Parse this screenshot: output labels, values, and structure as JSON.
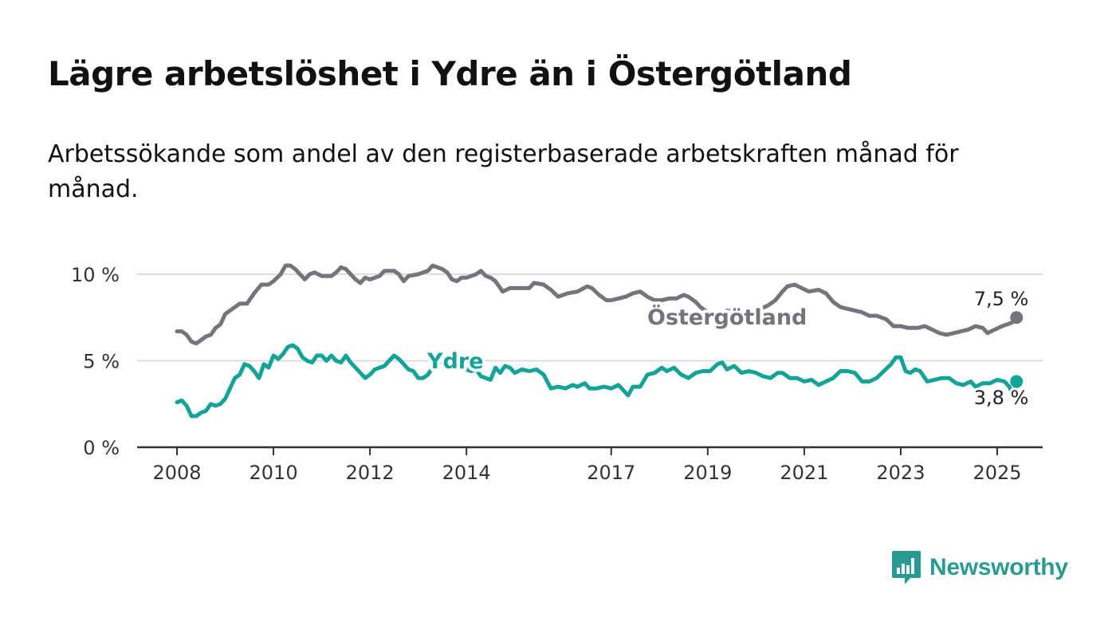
{
  "title": "Lägre arbetslöshet i Ydre än i Östergötland",
  "subtitle": "Arbetssökande som andel av den registerbaserade arbetskraften månad för månad.",
  "brand": {
    "name": "Newsworthy"
  },
  "colors": {
    "ostergotland": "#76747a",
    "ydre": "#13a397",
    "grid": "#dddddd",
    "axis": "#333333",
    "brand": "#2b9a93"
  },
  "chart_data": {
    "type": "line",
    "title": "",
    "xlabel": "",
    "ylabel": "",
    "xlim": [
      2008.0,
      2025.4
    ],
    "ylim": [
      0,
      10
    ],
    "grid": "horizontal",
    "legend": "inline labels on lines",
    "x_ticks": [
      {
        "value": 2008,
        "label": "2008"
      },
      {
        "value": 2010,
        "label": "2010"
      },
      {
        "value": 2012,
        "label": "2012"
      },
      {
        "value": 2014,
        "label": "2014"
      },
      {
        "value": 2017,
        "label": "2017"
      },
      {
        "value": 2019,
        "label": "2019"
      },
      {
        "value": 2021,
        "label": "2021"
      },
      {
        "value": 2023,
        "label": "2023"
      },
      {
        "value": 2025,
        "label": "2025"
      }
    ],
    "y_ticks": [
      {
        "value": 0,
        "label": "0 %"
      },
      {
        "value": 5,
        "label": "5 %"
      },
      {
        "value": 10,
        "label": "10 %"
      }
    ],
    "series": [
      {
        "name": "Östergötland",
        "color": "#76747a",
        "end_label": "7,5 %",
        "points": [
          [
            2008.0,
            6.7
          ],
          [
            2008.1,
            6.7
          ],
          [
            2008.2,
            6.5
          ],
          [
            2008.3,
            6.1
          ],
          [
            2008.4,
            6.0
          ],
          [
            2008.5,
            6.2
          ],
          [
            2008.6,
            6.4
          ],
          [
            2008.7,
            6.5
          ],
          [
            2008.8,
            6.9
          ],
          [
            2008.9,
            7.1
          ],
          [
            2009.0,
            7.7
          ],
          [
            2009.15,
            8.0
          ],
          [
            2009.3,
            8.3
          ],
          [
            2009.45,
            8.3
          ],
          [
            2009.6,
            8.9
          ],
          [
            2009.75,
            9.4
          ],
          [
            2009.9,
            9.4
          ],
          [
            2010.0,
            9.6
          ],
          [
            2010.15,
            10.0
          ],
          [
            2010.25,
            10.5
          ],
          [
            2010.35,
            10.5
          ],
          [
            2010.45,
            10.3
          ],
          [
            2010.55,
            10.0
          ],
          [
            2010.65,
            9.7
          ],
          [
            2010.75,
            10.0
          ],
          [
            2010.85,
            10.1
          ],
          [
            2011.0,
            9.9
          ],
          [
            2011.2,
            9.9
          ],
          [
            2011.3,
            10.1
          ],
          [
            2011.4,
            10.4
          ],
          [
            2011.5,
            10.3
          ],
          [
            2011.6,
            10.0
          ],
          [
            2011.7,
            9.7
          ],
          [
            2011.8,
            9.5
          ],
          [
            2011.9,
            9.8
          ],
          [
            2012.0,
            9.7
          ],
          [
            2012.1,
            9.8
          ],
          [
            2012.2,
            9.9
          ],
          [
            2012.3,
            10.2
          ],
          [
            2012.5,
            10.2
          ],
          [
            2012.6,
            10.0
          ],
          [
            2012.7,
            9.6
          ],
          [
            2012.8,
            9.9
          ],
          [
            2013.0,
            10.0
          ],
          [
            2013.1,
            10.1
          ],
          [
            2013.2,
            10.2
          ],
          [
            2013.3,
            10.5
          ],
          [
            2013.4,
            10.4
          ],
          [
            2013.5,
            10.3
          ],
          [
            2013.6,
            10.1
          ],
          [
            2013.7,
            9.7
          ],
          [
            2013.8,
            9.6
          ],
          [
            2013.9,
            9.8
          ],
          [
            2014.0,
            9.8
          ],
          [
            2014.1,
            9.9
          ],
          [
            2014.2,
            10.0
          ],
          [
            2014.3,
            10.2
          ],
          [
            2014.4,
            9.9
          ],
          [
            2014.5,
            9.8
          ],
          [
            2014.6,
            9.6
          ],
          [
            2014.75,
            9.0
          ],
          [
            2014.9,
            9.2
          ],
          [
            2015.1,
            9.2
          ],
          [
            2015.3,
            9.2
          ],
          [
            2015.4,
            9.5
          ],
          [
            2015.6,
            9.4
          ],
          [
            2015.75,
            9.1
          ],
          [
            2015.9,
            8.7
          ],
          [
            2016.1,
            8.9
          ],
          [
            2016.3,
            9.0
          ],
          [
            2016.5,
            9.3
          ],
          [
            2016.6,
            9.2
          ],
          [
            2016.75,
            8.8
          ],
          [
            2016.9,
            8.5
          ],
          [
            2017.0,
            8.5
          ],
          [
            2017.15,
            8.6
          ],
          [
            2017.3,
            8.7
          ],
          [
            2017.45,
            8.9
          ],
          [
            2017.6,
            9.0
          ],
          [
            2017.75,
            8.7
          ],
          [
            2017.9,
            8.5
          ],
          [
            2018.05,
            8.5
          ],
          [
            2018.2,
            8.6
          ],
          [
            2018.35,
            8.6
          ],
          [
            2018.5,
            8.8
          ],
          [
            2018.6,
            8.7
          ],
          [
            2018.75,
            8.4
          ],
          [
            2018.85,
            8.1
          ],
          [
            2018.95,
            7.9
          ],
          [
            2019.1,
            7.7
          ],
          [
            2019.25,
            7.7
          ],
          [
            2019.4,
            7.9
          ],
          [
            2019.55,
            7.8
          ],
          [
            2019.7,
            7.6
          ],
          [
            2019.85,
            7.6
          ],
          [
            2019.95,
            7.7
          ],
          [
            2020.1,
            8.0
          ],
          [
            2020.25,
            8.2
          ],
          [
            2020.4,
            8.5
          ],
          [
            2020.55,
            9.0
          ],
          [
            2020.65,
            9.3
          ],
          [
            2020.8,
            9.4
          ],
          [
            2020.95,
            9.2
          ],
          [
            2021.1,
            9.0
          ],
          [
            2021.3,
            9.1
          ],
          [
            2021.45,
            8.9
          ],
          [
            2021.6,
            8.4
          ],
          [
            2021.75,
            8.1
          ],
          [
            2021.9,
            8.0
          ],
          [
            2022.05,
            7.9
          ],
          [
            2022.2,
            7.8
          ],
          [
            2022.35,
            7.6
          ],
          [
            2022.5,
            7.6
          ],
          [
            2022.7,
            7.4
          ],
          [
            2022.85,
            7.0
          ],
          [
            2023.0,
            7.0
          ],
          [
            2023.15,
            6.9
          ],
          [
            2023.35,
            6.9
          ],
          [
            2023.5,
            7.0
          ],
          [
            2023.65,
            6.8
          ],
          [
            2023.8,
            6.6
          ],
          [
            2023.95,
            6.5
          ],
          [
            2024.1,
            6.6
          ],
          [
            2024.25,
            6.7
          ],
          [
            2024.4,
            6.8
          ],
          [
            2024.55,
            7.0
          ],
          [
            2024.7,
            6.9
          ],
          [
            2024.8,
            6.6
          ],
          [
            2024.95,
            6.8
          ],
          [
            2025.1,
            7.0
          ],
          [
            2025.3,
            7.2
          ],
          [
            2025.4,
            7.5
          ]
        ]
      },
      {
        "name": "Ydre",
        "color": "#13a397",
        "end_label": "3,8 %",
        "points": [
          [
            2008.0,
            2.6
          ],
          [
            2008.1,
            2.7
          ],
          [
            2008.2,
            2.4
          ],
          [
            2008.3,
            1.8
          ],
          [
            2008.4,
            1.8
          ],
          [
            2008.5,
            2.0
          ],
          [
            2008.6,
            2.1
          ],
          [
            2008.7,
            2.5
          ],
          [
            2008.8,
            2.4
          ],
          [
            2008.9,
            2.5
          ],
          [
            2009.0,
            2.8
          ],
          [
            2009.1,
            3.4
          ],
          [
            2009.2,
            4.0
          ],
          [
            2009.3,
            4.2
          ],
          [
            2009.4,
            4.8
          ],
          [
            2009.5,
            4.7
          ],
          [
            2009.6,
            4.4
          ],
          [
            2009.7,
            4.0
          ],
          [
            2009.8,
            4.8
          ],
          [
            2009.9,
            4.6
          ],
          [
            2010.0,
            5.3
          ],
          [
            2010.1,
            5.1
          ],
          [
            2010.2,
            5.4
          ],
          [
            2010.3,
            5.8
          ],
          [
            2010.4,
            5.9
          ],
          [
            2010.5,
            5.7
          ],
          [
            2010.6,
            5.2
          ],
          [
            2010.7,
            5.0
          ],
          [
            2010.8,
            4.9
          ],
          [
            2010.9,
            5.3
          ],
          [
            2011.0,
            5.3
          ],
          [
            2011.1,
            5.0
          ],
          [
            2011.2,
            5.3
          ],
          [
            2011.3,
            5.0
          ],
          [
            2011.4,
            4.9
          ],
          [
            2011.5,
            5.3
          ],
          [
            2011.6,
            4.9
          ],
          [
            2011.7,
            4.6
          ],
          [
            2011.8,
            4.3
          ],
          [
            2011.9,
            4.0
          ],
          [
            2012.0,
            4.2
          ],
          [
            2012.1,
            4.5
          ],
          [
            2012.2,
            4.6
          ],
          [
            2012.3,
            4.7
          ],
          [
            2012.4,
            5.0
          ],
          [
            2012.5,
            5.3
          ],
          [
            2012.6,
            5.1
          ],
          [
            2012.7,
            4.8
          ],
          [
            2012.8,
            4.5
          ],
          [
            2012.9,
            4.4
          ],
          [
            2013.0,
            4.0
          ],
          [
            2013.1,
            4.0
          ],
          [
            2013.2,
            4.2
          ],
          [
            2013.3,
            4.6
          ],
          [
            2013.4,
            4.8
          ],
          [
            2013.5,
            5.1
          ],
          [
            2013.6,
            5.2
          ],
          [
            2013.7,
            4.9
          ],
          [
            2013.8,
            4.8
          ],
          [
            2013.9,
            4.8
          ],
          [
            2014.0,
            4.5
          ],
          [
            2014.1,
            4.4
          ],
          [
            2014.2,
            4.5
          ],
          [
            2014.3,
            4.1
          ],
          [
            2014.4,
            4.0
          ],
          [
            2014.5,
            3.9
          ],
          [
            2014.6,
            4.6
          ],
          [
            2014.7,
            4.3
          ],
          [
            2014.8,
            4.7
          ],
          [
            2014.9,
            4.6
          ],
          [
            2015.0,
            4.3
          ],
          [
            2015.15,
            4.5
          ],
          [
            2015.3,
            4.4
          ],
          [
            2015.45,
            4.5
          ],
          [
            2015.6,
            4.2
          ],
          [
            2015.75,
            3.4
          ],
          [
            2015.9,
            3.5
          ],
          [
            2016.05,
            3.4
          ],
          [
            2016.2,
            3.6
          ],
          [
            2016.3,
            3.5
          ],
          [
            2016.45,
            3.7
          ],
          [
            2016.55,
            3.4
          ],
          [
            2016.7,
            3.4
          ],
          [
            2016.85,
            3.5
          ],
          [
            2017.0,
            3.4
          ],
          [
            2017.15,
            3.6
          ],
          [
            2017.25,
            3.3
          ],
          [
            2017.35,
            3.0
          ],
          [
            2017.45,
            3.5
          ],
          [
            2017.6,
            3.5
          ],
          [
            2017.75,
            4.2
          ],
          [
            2017.9,
            4.3
          ],
          [
            2018.05,
            4.6
          ],
          [
            2018.15,
            4.4
          ],
          [
            2018.3,
            4.6
          ],
          [
            2018.45,
            4.2
          ],
          [
            2018.6,
            4.0
          ],
          [
            2018.75,
            4.3
          ],
          [
            2018.9,
            4.4
          ],
          [
            2019.05,
            4.4
          ],
          [
            2019.2,
            4.8
          ],
          [
            2019.3,
            4.9
          ],
          [
            2019.4,
            4.5
          ],
          [
            2019.55,
            4.7
          ],
          [
            2019.7,
            4.3
          ],
          [
            2019.85,
            4.4
          ],
          [
            2020.0,
            4.3
          ],
          [
            2020.15,
            4.1
          ],
          [
            2020.3,
            4.0
          ],
          [
            2020.45,
            4.3
          ],
          [
            2020.55,
            4.3
          ],
          [
            2020.7,
            4.0
          ],
          [
            2020.85,
            4.0
          ],
          [
            2021.0,
            3.8
          ],
          [
            2021.15,
            3.9
          ],
          [
            2021.3,
            3.6
          ],
          [
            2021.45,
            3.8
          ],
          [
            2021.6,
            4.0
          ],
          [
            2021.75,
            4.4
          ],
          [
            2021.9,
            4.4
          ],
          [
            2022.05,
            4.3
          ],
          [
            2022.2,
            3.8
          ],
          [
            2022.35,
            3.8
          ],
          [
            2022.5,
            4.0
          ],
          [
            2022.65,
            4.4
          ],
          [
            2022.8,
            4.8
          ],
          [
            2022.9,
            5.2
          ],
          [
            2023.0,
            5.2
          ],
          [
            2023.1,
            4.4
          ],
          [
            2023.2,
            4.3
          ],
          [
            2023.3,
            4.5
          ],
          [
            2023.4,
            4.4
          ],
          [
            2023.55,
            3.8
          ],
          [
            2023.7,
            3.9
          ],
          [
            2023.85,
            4.0
          ],
          [
            2024.0,
            4.0
          ],
          [
            2024.15,
            3.7
          ],
          [
            2024.3,
            3.6
          ],
          [
            2024.45,
            3.8
          ],
          [
            2024.55,
            3.5
          ],
          [
            2024.7,
            3.7
          ],
          [
            2024.85,
            3.7
          ],
          [
            2025.0,
            3.9
          ],
          [
            2025.15,
            3.8
          ],
          [
            2025.25,
            3.5
          ],
          [
            2025.3,
            3.2
          ],
          [
            2025.35,
            3.0
          ],
          [
            2025.4,
            3.8
          ]
        ]
      }
    ]
  }
}
